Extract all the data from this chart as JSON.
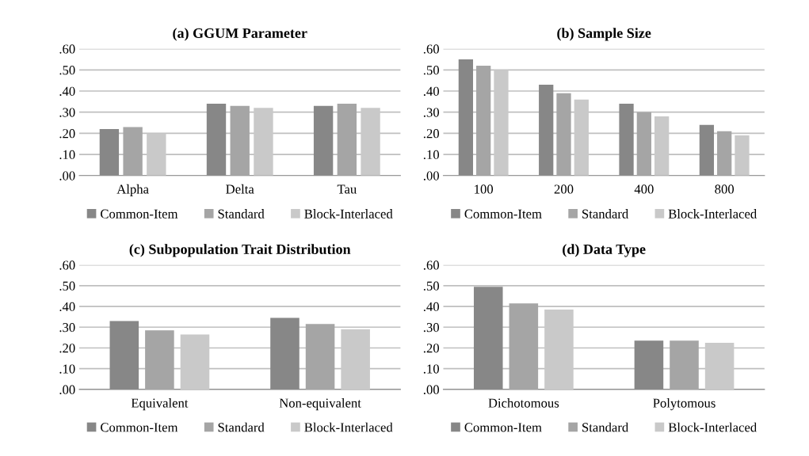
{
  "chart_data": [
    {
      "type": "bar",
      "title": "(a) GGUM Parameter",
      "categories": [
        "Alpha",
        "Delta",
        "Tau"
      ],
      "series": [
        {
          "name": "Common-Item",
          "color": "#878787",
          "values": [
            0.22,
            0.34,
            0.33
          ]
        },
        {
          "name": "Standard",
          "color": "#a5a5a5",
          "values": [
            0.23,
            0.33,
            0.34
          ]
        },
        {
          "name": "Block-Interlaced",
          "color": "#c9c9c9",
          "values": [
            0.2,
            0.32,
            0.32
          ]
        }
      ],
      "ylim": [
        0,
        0.6
      ],
      "yticks": [
        {
          "value": 0,
          "label": ".00"
        },
        {
          "value": 0.1,
          "label": ".10"
        },
        {
          "value": 0.2,
          "label": ".20"
        },
        {
          "value": 0.3,
          "label": ".30"
        },
        {
          "value": 0.4,
          "label": ".40"
        },
        {
          "value": 0.5,
          "label": ".50"
        },
        {
          "value": 0.6,
          "label": ".60"
        }
      ],
      "grid": "y",
      "legend": "bottom"
    },
    {
      "type": "bar",
      "title": "(b) Sample Size",
      "categories": [
        "100",
        "200",
        "400",
        "800"
      ],
      "series": [
        {
          "name": "Common-Item",
          "color": "#878787",
          "values": [
            0.55,
            0.43,
            0.34,
            0.24
          ]
        },
        {
          "name": "Standard",
          "color": "#a5a5a5",
          "values": [
            0.52,
            0.39,
            0.3,
            0.21
          ]
        },
        {
          "name": "Block-Interlaced",
          "color": "#c9c9c9",
          "values": [
            0.5,
            0.36,
            0.28,
            0.19
          ]
        }
      ],
      "ylim": [
        0,
        0.6
      ],
      "yticks": [
        {
          "value": 0,
          "label": ".00"
        },
        {
          "value": 0.1,
          "label": ".10"
        },
        {
          "value": 0.2,
          "label": ".20"
        },
        {
          "value": 0.3,
          "label": ".30"
        },
        {
          "value": 0.4,
          "label": ".40"
        },
        {
          "value": 0.5,
          "label": ".50"
        },
        {
          "value": 0.6,
          "label": ".60"
        }
      ],
      "grid": "y",
      "legend": "bottom"
    },
    {
      "type": "bar",
      "title": "(c) Subpopulation Trait Distribution",
      "categories": [
        "Equivalent",
        "Non-equivalent"
      ],
      "series": [
        {
          "name": "Common-Item",
          "color": "#878787",
          "values": [
            0.33,
            0.345
          ]
        },
        {
          "name": "Standard",
          "color": "#a5a5a5",
          "values": [
            0.285,
            0.315
          ]
        },
        {
          "name": "Block-Interlaced",
          "color": "#c9c9c9",
          "values": [
            0.265,
            0.29
          ]
        }
      ],
      "ylim": [
        0,
        0.6
      ],
      "yticks": [
        {
          "value": 0,
          "label": ".00"
        },
        {
          "value": 0.1,
          "label": ".10"
        },
        {
          "value": 0.2,
          "label": ".20"
        },
        {
          "value": 0.3,
          "label": ".30"
        },
        {
          "value": 0.4,
          "label": ".40"
        },
        {
          "value": 0.5,
          "label": ".50"
        },
        {
          "value": 0.6,
          "label": ".60"
        }
      ],
      "grid": "y",
      "legend": "bottom"
    },
    {
      "type": "bar",
      "title": "(d) Data Type",
      "categories": [
        "Dichotomous",
        "Polytomous"
      ],
      "series": [
        {
          "name": "Common-Item",
          "color": "#878787",
          "values": [
            0.495,
            0.235
          ]
        },
        {
          "name": "Standard",
          "color": "#a5a5a5",
          "values": [
            0.415,
            0.235
          ]
        },
        {
          "name": "Block-Interlaced",
          "color": "#c9c9c9",
          "values": [
            0.385,
            0.225
          ]
        }
      ],
      "ylim": [
        0,
        0.6
      ],
      "yticks": [
        {
          "value": 0,
          "label": ".00"
        },
        {
          "value": 0.1,
          "label": ".10"
        },
        {
          "value": 0.2,
          "label": ".20"
        },
        {
          "value": 0.3,
          "label": ".30"
        },
        {
          "value": 0.4,
          "label": ".40"
        },
        {
          "value": 0.5,
          "label": ".50"
        },
        {
          "value": 0.6,
          "label": ".60"
        }
      ],
      "grid": "y",
      "legend": "bottom"
    }
  ]
}
